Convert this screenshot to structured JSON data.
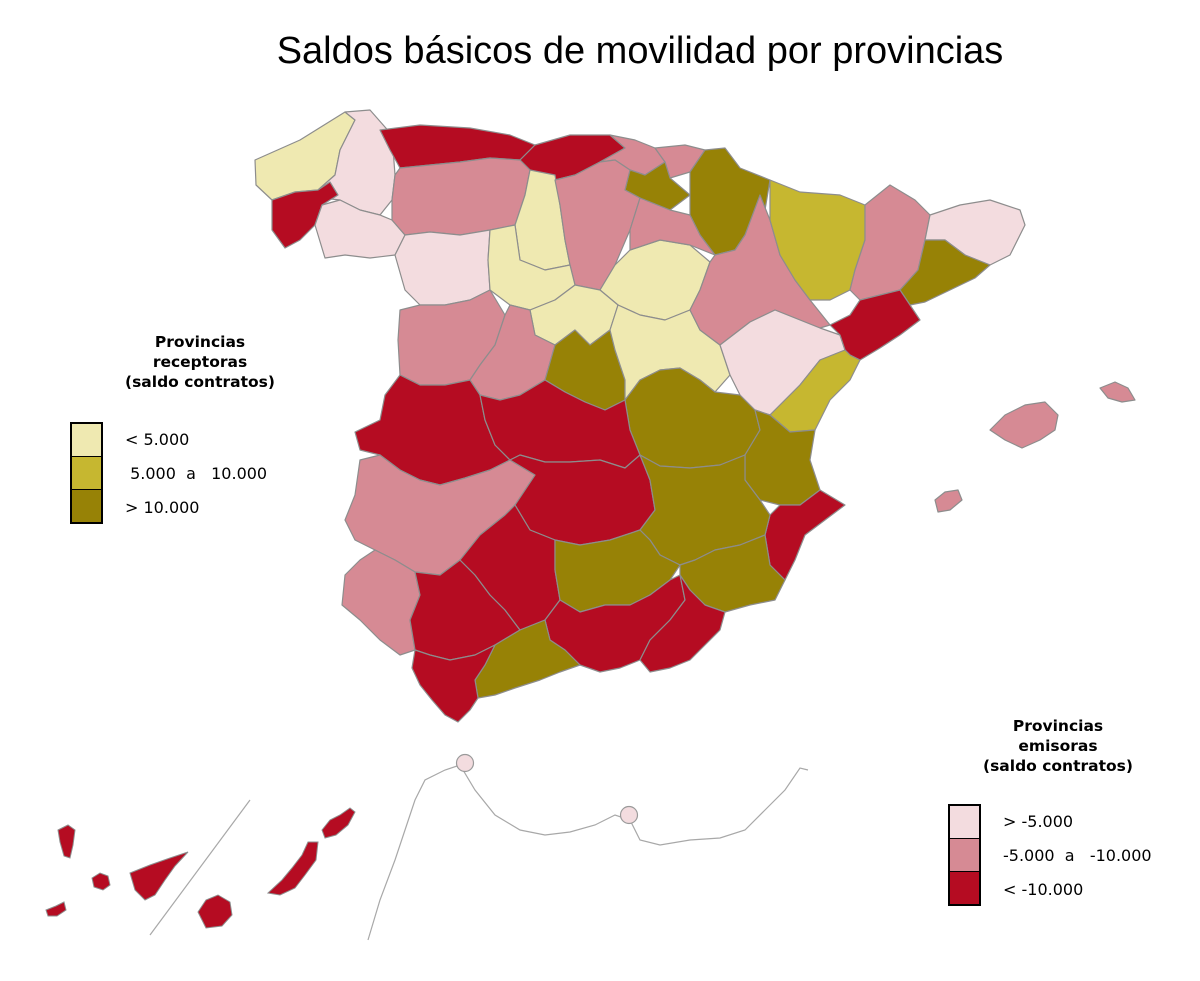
{
  "title": "Saldos básicos de movilidad por provincias",
  "colors": {
    "receptoras_low": "#efe9b1",
    "receptoras_mid": "#c6b730",
    "receptoras_high": "#978206",
    "emisoras_low": "#f3dcdf",
    "emisoras_mid": "#d68a94",
    "emisoras_high": "#b50c22"
  },
  "legend_receptoras": {
    "title_lines": [
      "Provincias",
      "receptoras",
      "(saldo contratos)"
    ],
    "items": [
      {
        "label": "< 5.000",
        "color": "#efe9b1"
      },
      {
        "label": " 5.000  a   10.000",
        "color": "#c6b730"
      },
      {
        "label": "> 10.000",
        "color": "#978206"
      }
    ]
  },
  "legend_emisoras": {
    "title_lines": [
      "Provincias",
      "emisoras",
      "(saldo contratos)"
    ],
    "items": [
      {
        "label": "> -5.000",
        "color": "#f3dcdf"
      },
      {
        "label": "-5.000  a   -10.000",
        "color": "#d68a94"
      },
      {
        "label": "< -10.000",
        "color": "#b50c22"
      }
    ]
  }
}
